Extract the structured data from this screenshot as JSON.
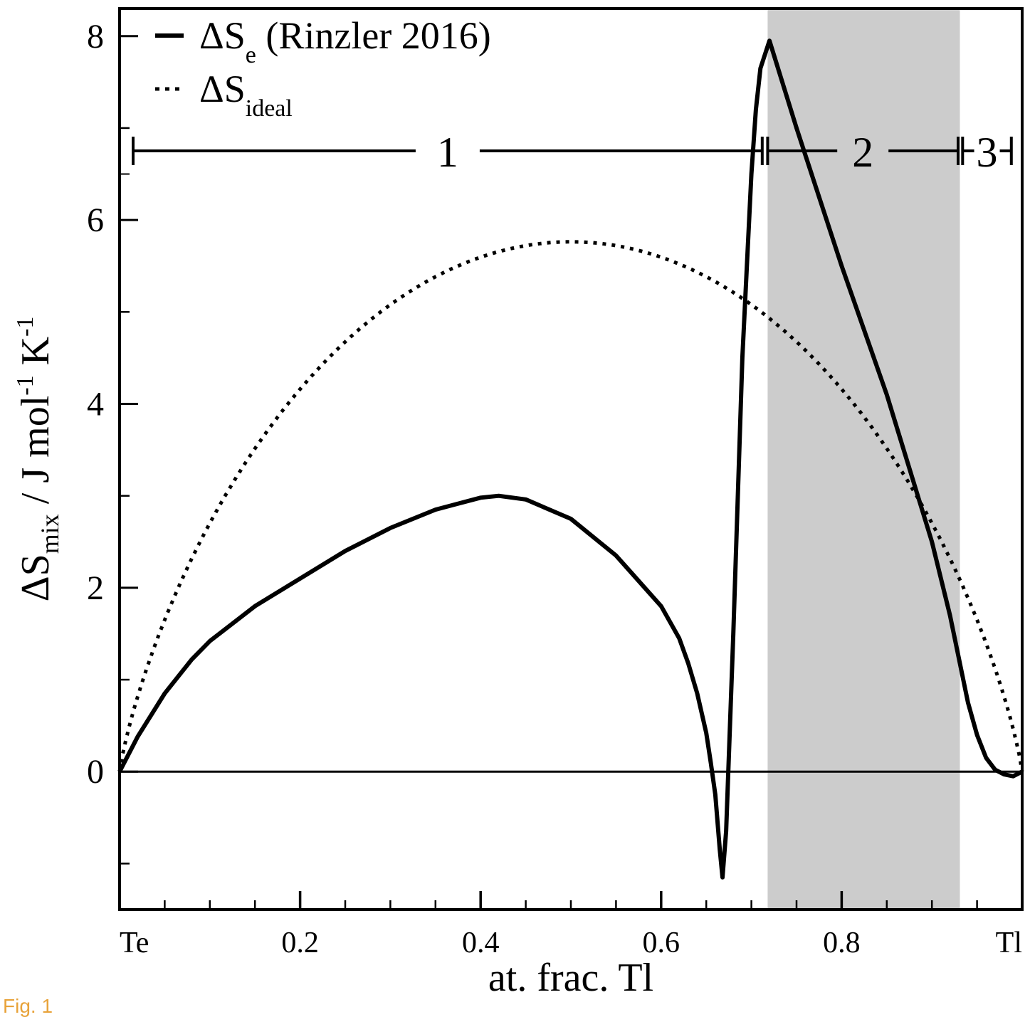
{
  "figure_label": "Fig. 1",
  "chart_data": {
    "type": "line",
    "xlabel": "at. frac. Tl",
    "ylabel": {
      "base": "ΔS",
      "sub": "mix",
      "unit": "/ J mol",
      "exp1": "-1",
      "unit2": "K",
      "exp2": "-1"
    },
    "xlim": [
      0,
      1
    ],
    "ylim": [
      -1.5,
      8.3
    ],
    "x_tick_labels": [
      {
        "x": 0,
        "label": "Te"
      },
      {
        "x": 0.2,
        "label": "0.2"
      },
      {
        "x": 0.4,
        "label": "0.4"
      },
      {
        "x": 0.6,
        "label": "0.6"
      },
      {
        "x": 0.8,
        "label": "0.8"
      },
      {
        "x": 1,
        "label": "Tl"
      }
    ],
    "y_ticks": [
      0,
      2,
      4,
      6,
      8
    ],
    "shaded_region": {
      "x0": 0.718,
      "x1": 0.931,
      "color": "#cccccc"
    },
    "zero_line": true,
    "legend": {
      "position": "top-left",
      "entries": [
        {
          "symbol": "ΔS",
          "sub": "e",
          "suffix": " (Rinzler 2016)",
          "style": "solid"
        },
        {
          "symbol": "ΔS",
          "sub": "ideal",
          "suffix": "",
          "style": "dotted"
        }
      ]
    },
    "regions": [
      {
        "label": "1",
        "x0": 0.015,
        "x1": 0.712
      },
      {
        "label": "2",
        "x0": 0.718,
        "x1": 0.929
      },
      {
        "label": "3",
        "x0": 0.934,
        "x1": 0.988
      }
    ],
    "region_bar_y": 6.7,
    "series": [
      {
        "name": "ΔSe (Rinzler 2016)",
        "style": "solid",
        "color": "#000000",
        "x": [
          0,
          0.02,
          0.05,
          0.08,
          0.1,
          0.15,
          0.2,
          0.25,
          0.3,
          0.35,
          0.4,
          0.42,
          0.45,
          0.5,
          0.55,
          0.6,
          0.62,
          0.63,
          0.64,
          0.65,
          0.655,
          0.66,
          0.665,
          0.668,
          0.672,
          0.68,
          0.69,
          0.7,
          0.705,
          0.71,
          0.72,
          0.75,
          0.8,
          0.85,
          0.9,
          0.92,
          0.94,
          0.95,
          0.96,
          0.97,
          0.98,
          0.99,
          1.0
        ],
        "y": [
          0,
          0.38,
          0.85,
          1.22,
          1.42,
          1.8,
          2.1,
          2.4,
          2.65,
          2.85,
          2.98,
          3.0,
          2.96,
          2.75,
          2.35,
          1.8,
          1.45,
          1.18,
          0.85,
          0.42,
          0.1,
          -0.25,
          -0.85,
          -1.15,
          -0.65,
          1.5,
          4.5,
          6.5,
          7.2,
          7.65,
          7.95,
          7.0,
          5.5,
          4.1,
          2.5,
          1.7,
          0.75,
          0.4,
          0.15,
          0.02,
          -0.03,
          -0.05,
          0
        ]
      },
      {
        "name": "ΔSideal",
        "style": "dotted",
        "color": "#000000",
        "function": "-R*(x*ln(x)+(1-x)*ln(1-x))",
        "R": 8.314
      }
    ]
  }
}
